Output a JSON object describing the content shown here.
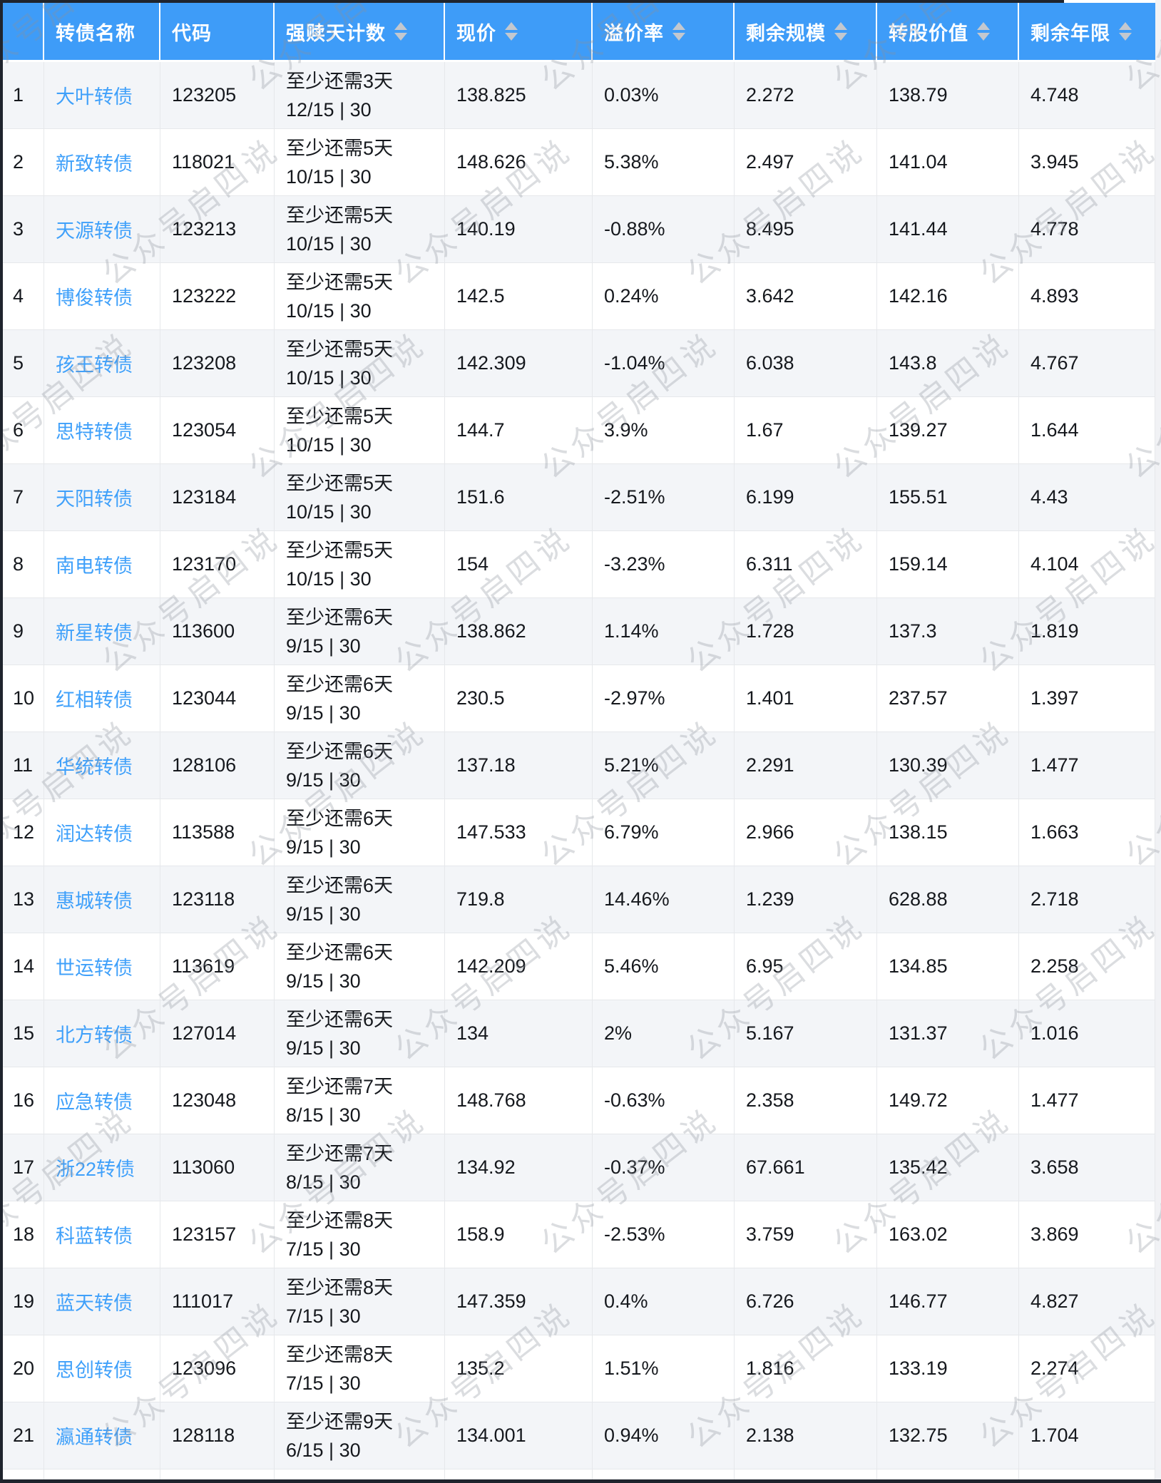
{
  "watermark": {
    "text": "公众号启四说"
  },
  "colors": {
    "header_bg": "#3E9CF8",
    "link_blue": "#3FA0FA",
    "stripe_bg": "#F3F5F8",
    "border": "#E6E8EB",
    "sort_icon": "#C3C8CF",
    "frame_edge": "#1F242D"
  },
  "table": {
    "columns": [
      {
        "key": "index",
        "label": "",
        "sortable": false
      },
      {
        "key": "name",
        "label": "转债名称",
        "sortable": false
      },
      {
        "key": "code",
        "label": "代码",
        "sortable": false
      },
      {
        "key": "days",
        "label": "强赎天计数",
        "sortable": true
      },
      {
        "key": "price",
        "label": "现价",
        "sortable": true
      },
      {
        "key": "premium",
        "label": "溢价率",
        "sortable": true
      },
      {
        "key": "size",
        "label": "剩余规模",
        "sortable": true
      },
      {
        "key": "conv",
        "label": "转股价值",
        "sortable": true
      },
      {
        "key": "years",
        "label": "剩余年限",
        "sortable": true
      }
    ],
    "rows": [
      {
        "index": 1,
        "name": "大叶转债",
        "code": "123205",
        "days_line1": "至少还需3天",
        "days_line2": "12/15 | 30",
        "price": "138.825",
        "premium": "0.03%",
        "size": "2.272",
        "conv": "138.79",
        "years": "4.748"
      },
      {
        "index": 2,
        "name": "新致转债",
        "code": "118021",
        "days_line1": "至少还需5天",
        "days_line2": "10/15 | 30",
        "price": "148.626",
        "premium": "5.38%",
        "size": "2.497",
        "conv": "141.04",
        "years": "3.945"
      },
      {
        "index": 3,
        "name": "天源转债",
        "code": "123213",
        "days_line1": "至少还需5天",
        "days_line2": "10/15 | 30",
        "price": "140.19",
        "premium": "-0.88%",
        "size": "8.495",
        "conv": "141.44",
        "years": "4.778"
      },
      {
        "index": 4,
        "name": "博俊转债",
        "code": "123222",
        "days_line1": "至少还需5天",
        "days_line2": "10/15 | 30",
        "price": "142.5",
        "premium": "0.24%",
        "size": "3.642",
        "conv": "142.16",
        "years": "4.893"
      },
      {
        "index": 5,
        "name": "孩王转债",
        "code": "123208",
        "days_line1": "至少还需5天",
        "days_line2": "10/15 | 30",
        "price": "142.309",
        "premium": "-1.04%",
        "size": "6.038",
        "conv": "143.8",
        "years": "4.767"
      },
      {
        "index": 6,
        "name": "思特转债",
        "code": "123054",
        "days_line1": "至少还需5天",
        "days_line2": "10/15 | 30",
        "price": "144.7",
        "premium": "3.9%",
        "size": "1.67",
        "conv": "139.27",
        "years": "1.644"
      },
      {
        "index": 7,
        "name": "天阳转债",
        "code": "123184",
        "days_line1": "至少还需5天",
        "days_line2": "10/15 | 30",
        "price": "151.6",
        "premium": "-2.51%",
        "size": "6.199",
        "conv": "155.51",
        "years": "4.43"
      },
      {
        "index": 8,
        "name": "南电转债",
        "code": "123170",
        "days_line1": "至少还需5天",
        "days_line2": "10/15 | 30",
        "price": "154",
        "premium": "-3.23%",
        "size": "6.311",
        "conv": "159.14",
        "years": "4.104"
      },
      {
        "index": 9,
        "name": "新星转债",
        "code": "113600",
        "days_line1": "至少还需6天",
        "days_line2": "9/15 | 30",
        "price": "138.862",
        "premium": "1.14%",
        "size": "1.728",
        "conv": "137.3",
        "years": "1.819"
      },
      {
        "index": 10,
        "name": "红相转债",
        "code": "123044",
        "days_line1": "至少还需6天",
        "days_line2": "9/15 | 30",
        "price": "230.5",
        "premium": "-2.97%",
        "size": "1.401",
        "conv": "237.57",
        "years": "1.397"
      },
      {
        "index": 11,
        "name": "华统转债",
        "code": "128106",
        "days_line1": "至少还需6天",
        "days_line2": "9/15 | 30",
        "price": "137.18",
        "premium": "5.21%",
        "size": "2.291",
        "conv": "130.39",
        "years": "1.477"
      },
      {
        "index": 12,
        "name": "润达转债",
        "code": "113588",
        "days_line1": "至少还需6天",
        "days_line2": "9/15 | 30",
        "price": "147.533",
        "premium": "6.79%",
        "size": "2.966",
        "conv": "138.15",
        "years": "1.663"
      },
      {
        "index": 13,
        "name": "惠城转债",
        "code": "123118",
        "days_line1": "至少还需6天",
        "days_line2": "9/15 | 30",
        "price": "719.8",
        "premium": "14.46%",
        "size": "1.239",
        "conv": "628.88",
        "years": "2.718"
      },
      {
        "index": 14,
        "name": "世运转债",
        "code": "113619",
        "days_line1": "至少还需6天",
        "days_line2": "9/15 | 30",
        "price": "142.209",
        "premium": "5.46%",
        "size": "6.95",
        "conv": "134.85",
        "years": "2.258"
      },
      {
        "index": 15,
        "name": "北方转债",
        "code": "127014",
        "days_line1": "至少还需6天",
        "days_line2": "9/15 | 30",
        "price": "134",
        "premium": "2%",
        "size": "5.167",
        "conv": "131.37",
        "years": "1.016"
      },
      {
        "index": 16,
        "name": "应急转债",
        "code": "123048",
        "days_line1": "至少还需7天",
        "days_line2": "8/15 | 30",
        "price": "148.768",
        "premium": "-0.63%",
        "size": "2.358",
        "conv": "149.72",
        "years": "1.477"
      },
      {
        "index": 17,
        "name": "浙22转债",
        "code": "113060",
        "days_line1": "至少还需7天",
        "days_line2": "8/15 | 30",
        "price": "134.92",
        "premium": "-0.37%",
        "size": "67.661",
        "conv": "135.42",
        "years": "3.658"
      },
      {
        "index": 18,
        "name": "科蓝转债",
        "code": "123157",
        "days_line1": "至少还需8天",
        "days_line2": "7/15 | 30",
        "price": "158.9",
        "premium": "-2.53%",
        "size": "3.759",
        "conv": "163.02",
        "years": "3.869"
      },
      {
        "index": 19,
        "name": "蓝天转债",
        "code": "111017",
        "days_line1": "至少还需8天",
        "days_line2": "7/15 | 30",
        "price": "147.359",
        "premium": "0.4%",
        "size": "6.726",
        "conv": "146.77",
        "years": "4.827"
      },
      {
        "index": 20,
        "name": "思创转债",
        "code": "123096",
        "days_line1": "至少还需8天",
        "days_line2": "7/15 | 30",
        "price": "135.2",
        "premium": "1.51%",
        "size": "1.816",
        "conv": "133.19",
        "years": "2.274"
      },
      {
        "index": 21,
        "name": "瀛通转债",
        "code": "128118",
        "days_line1": "至少还需9天",
        "days_line2": "6/15 | 30",
        "price": "134.001",
        "premium": "0.94%",
        "size": "2.138",
        "conv": "132.75",
        "years": "1.704"
      }
    ]
  }
}
